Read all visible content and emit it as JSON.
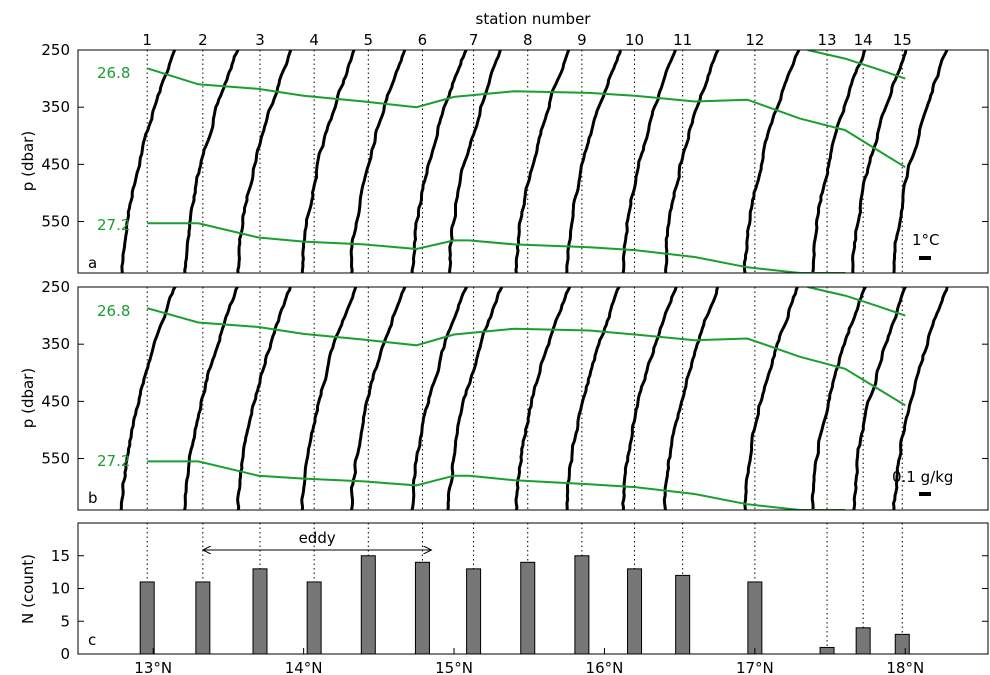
{
  "chart_data": [
    {
      "panel": "a",
      "type": "line",
      "top_axis_label": "station number",
      "stations": [
        "1",
        "2",
        "3",
        "4",
        "5",
        "6",
        "7",
        "8",
        "9",
        "10",
        "11",
        "12",
        "13",
        "14",
        "15"
      ],
      "ylabel": "p (dbar)",
      "yticks": [
        "250",
        "350",
        "450",
        "550"
      ],
      "ylim": [
        250,
        640
      ],
      "y_inverted": true,
      "panel_label": "a",
      "scale_label": "1°C",
      "isopycnal_labels": [
        "26.8",
        "27.2"
      ],
      "profile_color": "#000000",
      "isopycnal_color": "#1a9e2e",
      "isopycnals": [
        {
          "name": "26.8",
          "x": [
            12.96,
            13.3,
            13.7,
            14.0,
            14.4,
            14.75,
            15.0,
            15.4,
            15.9,
            16.2,
            16.6,
            16.95,
            17.3,
            17.6,
            18.0
          ],
          "y": [
            282,
            310,
            318,
            330,
            340,
            350,
            332,
            322,
            325,
            330,
            340,
            337,
            370,
            390,
            455
          ]
        },
        {
          "name": "27.2",
          "x": [
            12.96,
            13.3,
            13.7,
            14.0,
            14.4,
            14.75,
            15.0,
            15.1,
            15.4,
            15.9,
            16.2,
            16.6,
            16.95,
            17.3,
            17.6
          ],
          "y": [
            553,
            553,
            578,
            585,
            590,
            598,
            583,
            583,
            590,
            595,
            600,
            612,
            630,
            640,
            640
          ]
        },
        {
          "name": "26.8-upper",
          "x": [
            17.35,
            17.6,
            17.8,
            18.0
          ],
          "y": [
            250,
            265,
            282,
            300
          ]
        }
      ]
    },
    {
      "panel": "b",
      "type": "line",
      "ylabel": "p (dbar)",
      "yticks": [
        "250",
        "350",
        "450",
        "550"
      ],
      "ylim": [
        250,
        640
      ],
      "y_inverted": true,
      "panel_label": "b",
      "scale_label": "0.1 g/kg",
      "isopycnal_labels": [
        "26.8",
        "27.2"
      ],
      "isopycnals": [
        {
          "name": "26.8",
          "x": [
            12.96,
            13.3,
            13.7,
            14.0,
            14.4,
            14.75,
            15.0,
            15.4,
            15.9,
            16.2,
            16.6,
            16.95,
            17.3,
            17.6,
            18.0
          ],
          "y": [
            287,
            312,
            320,
            332,
            342,
            352,
            333,
            323,
            326,
            333,
            343,
            340,
            372,
            393,
            457
          ]
        },
        {
          "name": "27.2",
          "x": [
            12.96,
            13.3,
            13.7,
            14.0,
            14.4,
            14.75,
            15.0,
            15.1,
            15.4,
            15.9,
            16.2,
            16.6,
            16.95,
            17.3,
            17.6
          ],
          "y": [
            555,
            555,
            580,
            585,
            590,
            597,
            580,
            580,
            588,
            595,
            600,
            612,
            630,
            640,
            640
          ]
        },
        {
          "name": "26.8-upper",
          "x": [
            17.35,
            17.6,
            17.8,
            18.0
          ],
          "y": [
            250,
            265,
            282,
            300
          ]
        }
      ]
    },
    {
      "panel": "c",
      "type": "bar",
      "ylabel": "N (count)",
      "yticks": [
        "0",
        "5",
        "10",
        "15"
      ],
      "ylim": [
        0,
        20
      ],
      "panel_label": "c",
      "annotation": "eddy",
      "eddy_range": [
        13.33,
        14.85
      ],
      "bar_color": "#777777",
      "x": [
        12.96,
        13.33,
        13.71,
        14.07,
        14.43,
        14.79,
        15.13,
        15.49,
        15.85,
        16.2,
        16.52,
        17.0,
        17.48,
        17.72,
        17.98
      ],
      "values": [
        11,
        11,
        13,
        11,
        15,
        14,
        13,
        14,
        15,
        13,
        12,
        11,
        1,
        4,
        3
      ],
      "xtick_values": [
        13,
        14,
        15,
        16,
        17,
        18
      ],
      "xticks": [
        "13°N",
        "14°N",
        "15°N",
        "16°N",
        "17°N",
        "18°N"
      ],
      "xlim": [
        12.5,
        18.55
      ]
    }
  ]
}
